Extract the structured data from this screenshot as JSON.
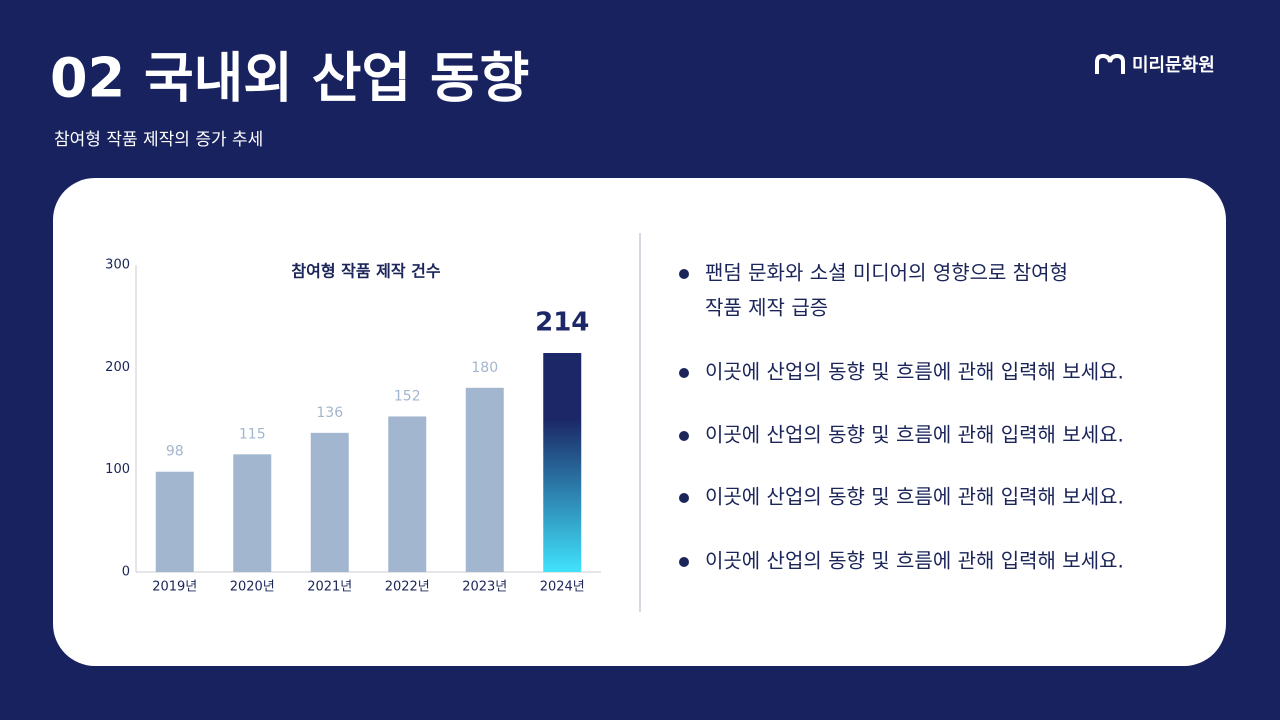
{
  "header": {
    "title": "02 국내외 산업 동향",
    "subtitle": "참여형 작품 제작의 증가 추세",
    "logo": "미리문화원"
  },
  "chart_data": {
    "type": "bar",
    "title": "참여형 작품 제작 건수",
    "categories": [
      "2019년",
      "2020년",
      "2021년",
      "2022년",
      "2023년",
      "2024년"
    ],
    "values": [
      98,
      115,
      136,
      152,
      180,
      214
    ],
    "colors": [
      "#a3b6cf",
      "#a3b6cf",
      "#a3b6cf",
      "#a3b6cf",
      "#a3b6cf",
      "#1b2766"
    ],
    "ylim": [
      0,
      300
    ],
    "yticks": [
      0,
      100,
      200,
      300
    ],
    "grid": false
  },
  "bullets": [
    [
      "팬덤 문화와 소셜 미디어의 영향으로 참여형",
      "작품 제작 급증"
    ],
    [
      "이곳에 산업의 동향 및 흐름에 관해 입력해 보세요."
    ],
    [
      "이곳에 산업의 동향 및 흐름에 관해 입력해 보세요."
    ],
    [
      "이곳에 산업의 동향 및 흐름에 관해 입력해 보세요."
    ],
    [
      "이곳에 산업의 동향 및 흐름에 관해 입력해 보세요."
    ]
  ]
}
